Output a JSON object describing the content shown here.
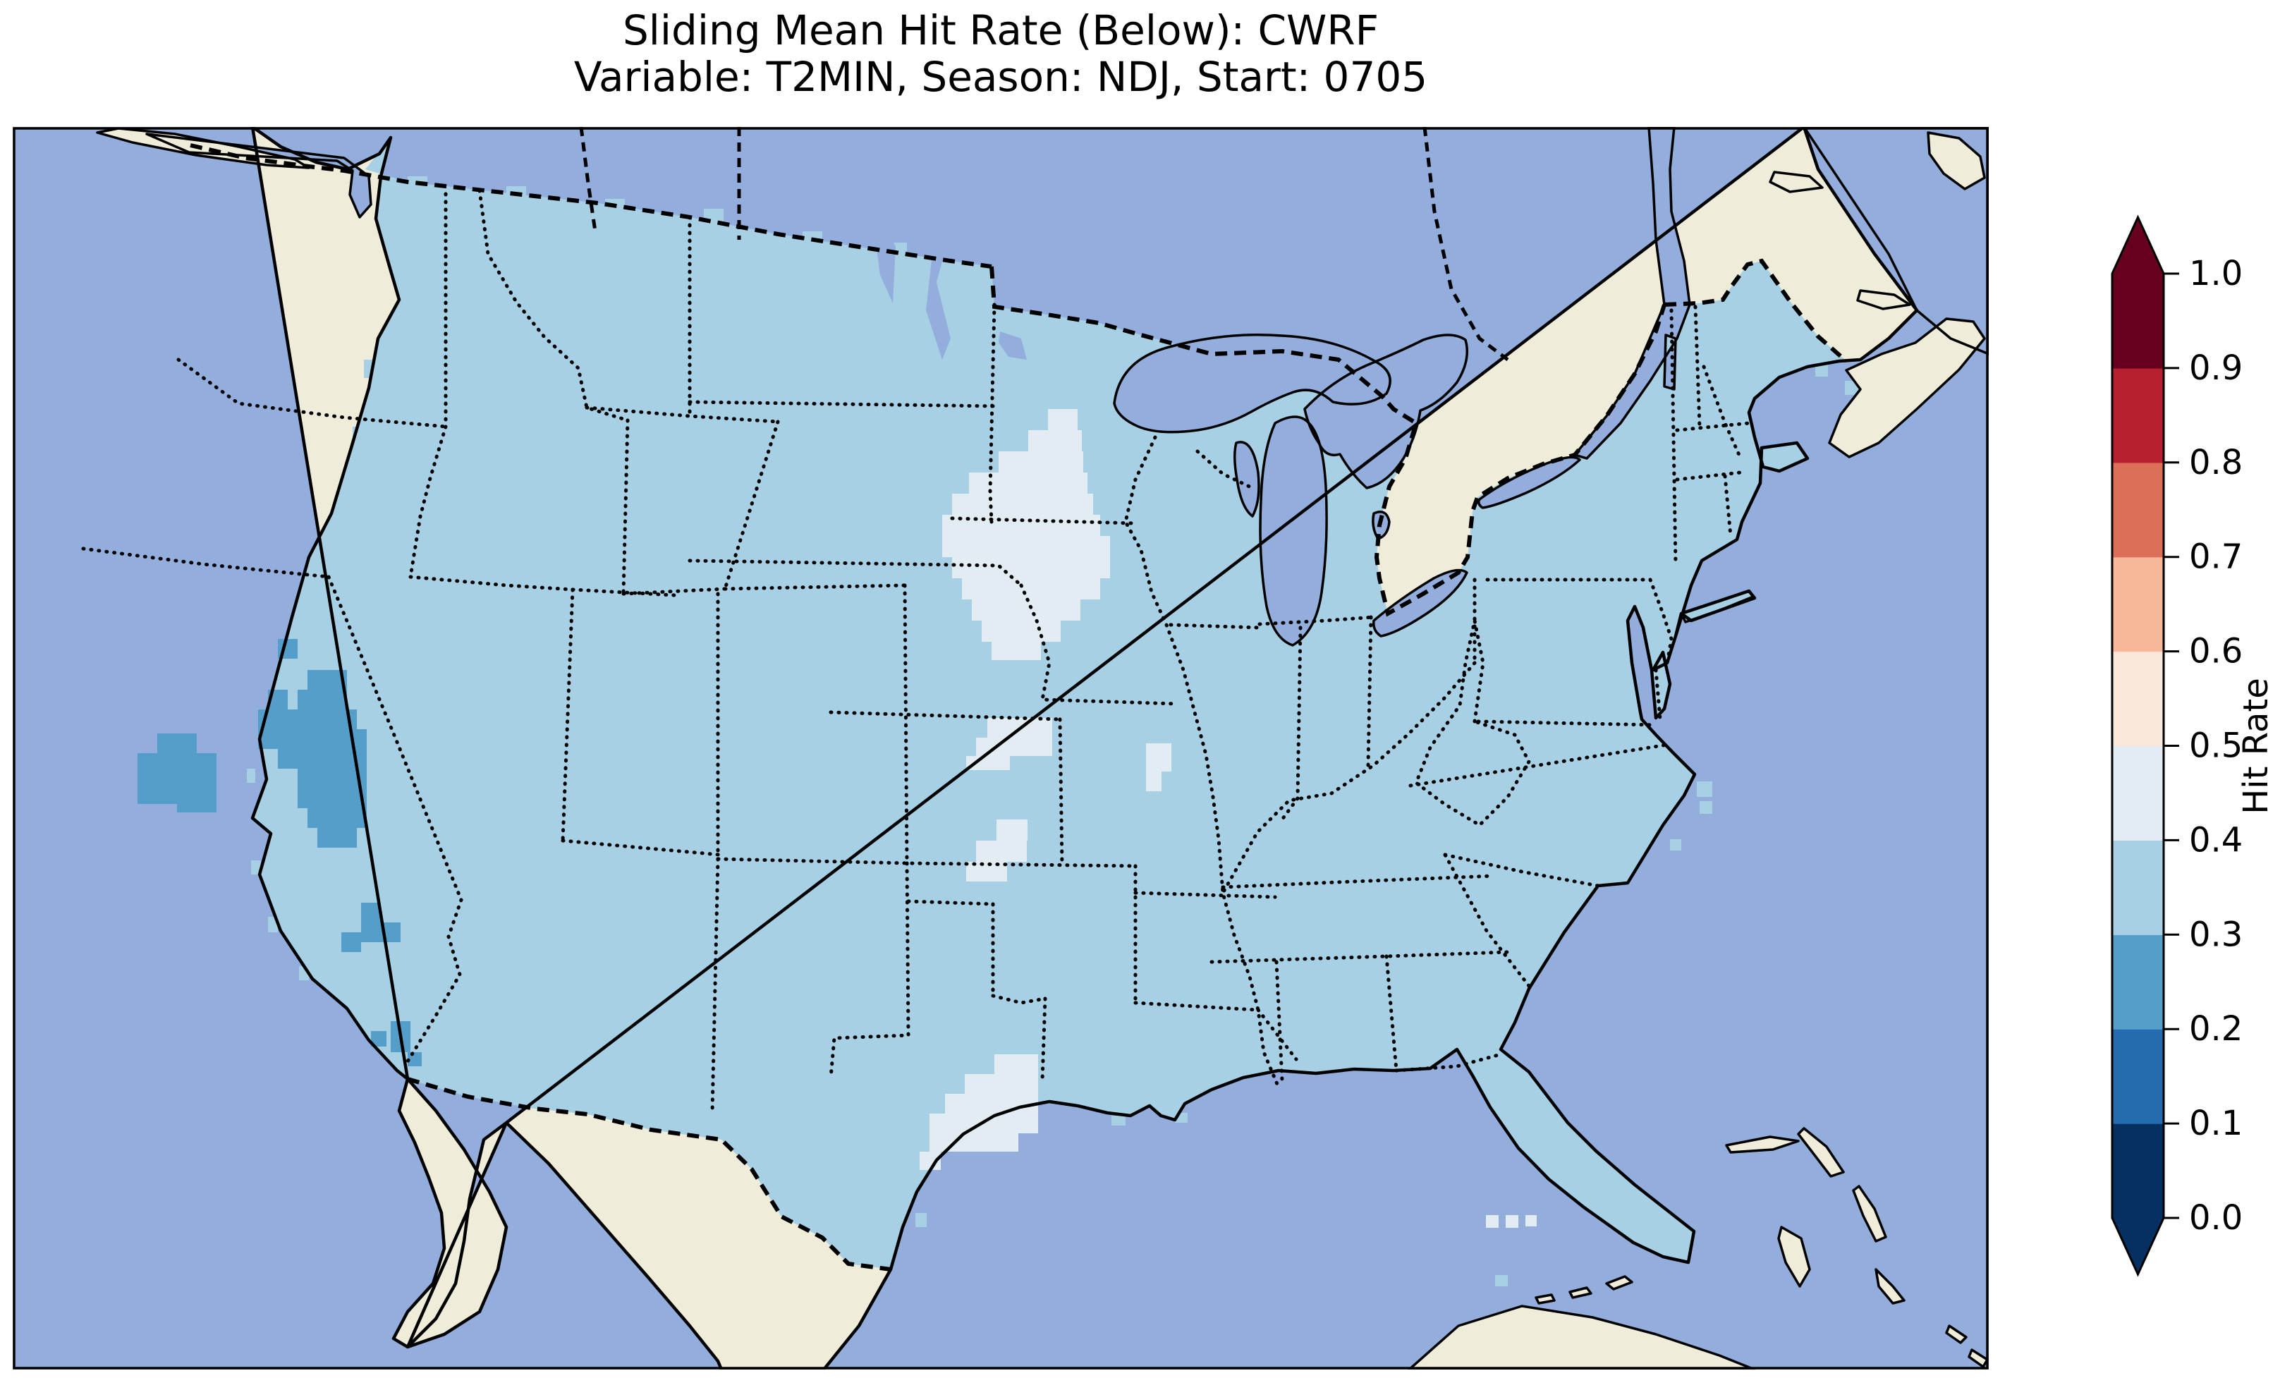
{
  "title": {
    "line1": "Sliding Mean Hit Rate (Below): CWRF",
    "line2": "Variable: T2MIN, Season: NDJ, Start: 0705"
  },
  "colorbar": {
    "label": "Hit Rate",
    "tick_labels": [
      "1.0",
      "0.9",
      "0.8",
      "0.7",
      "0.6",
      "0.5",
      "0.4",
      "0.3",
      "0.2",
      "0.1",
      "0.0"
    ],
    "tick_values": [
      1.0,
      0.9,
      0.8,
      0.7,
      0.6,
      0.5,
      0.4,
      0.3,
      0.2,
      0.1,
      0.0
    ],
    "bin_colors_bottom_to_top": [
      "#053061",
      "#256BAF",
      "#549EC9",
      "#A7D0E4",
      "#E2EDF3",
      "#FAE7DC",
      "#F7B799",
      "#DD6F59",
      "#B6202F",
      "#67001F"
    ],
    "over_arrow_color": "#67001F",
    "under_arrow_color": "#053061",
    "extend": "both"
  },
  "theme": {
    "ocean": "#93AEDC",
    "land": "#EFEDDA",
    "us_dominant_bin_color": "#A7D0E4",
    "pale_bin_color": "#E2EDF3",
    "dark_bin_color": "#549EC9",
    "coastline": "#000000",
    "background": "#FFFFFF"
  },
  "map": {
    "region": "Contiguous United States (CONUS) with southern Canada, northern Mexico, Bahamas and Cuba",
    "dominant_bin": "0.3–0.4",
    "patches": {
      "dark": [
        [
          205,
          860,
          56,
          28
        ],
        [
          177,
          888,
          112,
          28
        ],
        [
          177,
          916,
          84,
          44
        ],
        [
          233,
          944,
          56,
          28
        ],
        [
          261,
          916,
          28,
          28
        ],
        [
          376,
          726,
          28,
          28
        ],
        [
          362,
          798,
          28,
          28
        ],
        [
          418,
          770,
          56,
          28
        ],
        [
          404,
          798,
          70,
          28
        ],
        [
          348,
          826,
          140,
          28
        ],
        [
          348,
          854,
          154,
          28
        ],
        [
          376,
          882,
          126,
          28
        ],
        [
          404,
          910,
          98,
          28
        ],
        [
          404,
          938,
          98,
          28
        ],
        [
          418,
          966,
          84,
          28
        ],
        [
          432,
          994,
          56,
          28
        ],
        [
          494,
          1100,
          28,
          56
        ],
        [
          522,
          1128,
          28,
          28
        ],
        [
          466,
          1142,
          28,
          28
        ],
        [
          536,
          1268,
          28,
          44
        ],
        [
          508,
          1282,
          22,
          22
        ],
        [
          560,
          1312,
          20,
          20
        ]
      ],
      "pale": [
        [
          1468,
          400,
          42,
          30
        ],
        [
          1440,
          430,
          76,
          30
        ],
        [
          1398,
          460,
          120,
          30
        ],
        [
          1356,
          490,
          168,
          30
        ],
        [
          1332,
          520,
          200,
          30
        ],
        [
          1318,
          550,
          224,
          30
        ],
        [
          1318,
          580,
          238,
          30
        ],
        [
          1332,
          610,
          224,
          30
        ],
        [
          1346,
          640,
          196,
          30
        ],
        [
          1360,
          670,
          154,
          30
        ],
        [
          1374,
          700,
          112,
          30
        ],
        [
          1388,
          730,
          70,
          26
        ],
        [
          1382,
          838,
          92,
          28
        ],
        [
          1366,
          866,
          108,
          26
        ],
        [
          1352,
          892,
          62,
          20
        ],
        [
          1395,
          982,
          44,
          30
        ],
        [
          1366,
          1012,
          72,
          30
        ],
        [
          1352,
          1042,
          58,
          28
        ],
        [
          1607,
          874,
          36,
          40
        ],
        [
          1607,
          914,
          22,
          28
        ],
        [
          1392,
          1315,
          62,
          28
        ],
        [
          1350,
          1343,
          104,
          28
        ],
        [
          1322,
          1371,
          132,
          28
        ],
        [
          1300,
          1399,
          154,
          28
        ],
        [
          1300,
          1427,
          126,
          26
        ],
        [
          1286,
          1453,
          30,
          26
        ],
        [
          2089,
          1543,
          18,
          18
        ],
        [
          2117,
          1543,
          18,
          18
        ],
        [
          2145,
          1543,
          16,
          16
        ]
      ],
      "us_nubs": [
        [
          560,
          70,
          28,
          24
        ],
        [
          700,
          84,
          28,
          22
        ],
        [
          840,
          102,
          28,
          22
        ],
        [
          980,
          116,
          28,
          24
        ],
        [
          1120,
          148,
          28,
          24
        ],
        [
          1240,
          164,
          28,
          24
        ],
        [
          1330,
          196,
          26,
          22
        ],
        [
          498,
          330,
          14,
          26
        ],
        [
          482,
          425,
          14,
          26
        ],
        [
          462,
          520,
          14,
          24
        ],
        [
          438,
          618,
          12,
          24
        ],
        [
          410,
          716,
          12,
          24
        ],
        [
          388,
          806,
          12,
          22
        ],
        [
          332,
          910,
          12,
          20
        ],
        [
          338,
          1040,
          14,
          20
        ],
        [
          362,
          1120,
          14,
          22
        ],
        [
          406,
          1190,
          14,
          20
        ],
        [
          2388,
          928,
          22,
          22
        ],
        [
          2392,
          956,
          18,
          18
        ],
        [
          2598,
          360,
          20,
          20
        ],
        [
          2556,
          336,
          18,
          18
        ],
        [
          2350,
          1010,
          16,
          16
        ],
        [
          1420,
          1398,
          22,
          16
        ],
        [
          1558,
          1402,
          20,
          14
        ],
        [
          1648,
          1398,
          18,
          14
        ],
        [
          2102,
          1628,
          18,
          16
        ],
        [
          1280,
          1540,
          16,
          20
        ]
      ]
    },
    "anomalies": [
      {
        "region": "Southern California coast",
        "bin": "0.2–0.3"
      },
      {
        "region": "Southern Nevada / western-central Arizona",
        "bin": "0.2–0.3"
      },
      {
        "region": "Southeastern Arizona border cells",
        "bin": "0.2–0.3"
      },
      {
        "region": "Southern Minnesota / northern Iowa",
        "bin": "0.4–0.5"
      },
      {
        "region": "Nebraska–Kansas border cells",
        "bin": "0.4–0.5"
      },
      {
        "region": "Central Missouri cells",
        "bin": "0.4–0.5"
      },
      {
        "region": "Upper Texas Gulf coast",
        "bin": "0.4–0.5"
      },
      {
        "region": "South Florida cells",
        "bin": "0.4–0.5"
      }
    ]
  },
  "chart_data": {
    "type": "heatmap",
    "title": "Sliding Mean Hit Rate (Below): CWRF — Variable: T2MIN, Season: NDJ, Start: 0705",
    "colorbar_label": "Hit Rate",
    "colorbar_range": [
      0.0,
      1.0
    ],
    "colorbar_ticks": [
      0.0,
      0.1,
      0.2,
      0.3,
      0.4,
      0.5,
      0.6,
      0.7,
      0.8,
      0.9,
      1.0
    ],
    "bins": [
      {
        "range": "0.0-0.1",
        "color": "#053061"
      },
      {
        "range": "0.1-0.2",
        "color": "#256BAF"
      },
      {
        "range": "0.2-0.3",
        "color": "#549EC9"
      },
      {
        "range": "0.3-0.4",
        "color": "#A7D0E4"
      },
      {
        "range": "0.4-0.5",
        "color": "#E2EDF3"
      },
      {
        "range": "0.5-0.6",
        "color": "#FAE7DC"
      },
      {
        "range": "0.6-0.7",
        "color": "#F7B799"
      },
      {
        "range": "0.7-0.8",
        "color": "#DD6F59"
      },
      {
        "range": "0.8-0.9",
        "color": "#B6202F"
      },
      {
        "range": "0.9-1.0",
        "color": "#67001F"
      }
    ],
    "summary": "Gridded hit-rate field over CONUS; nearly the whole domain falls in the 0.3-0.4 bin, with 0.2-0.3 pockets in southern California / Nevada / Arizona and 0.4-0.5 pockets in Minnesota-Iowa, Nebraska-Kansas, Missouri, coastal Texas and south Florida."
  }
}
